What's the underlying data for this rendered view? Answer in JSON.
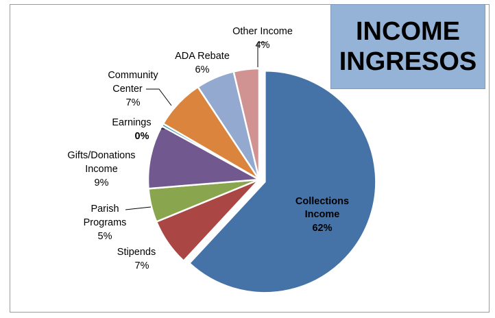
{
  "title": {
    "line1": "INCOME",
    "line2": "INGRESOS"
  },
  "colors": {
    "title_box": "#95b3d7",
    "collections": "#4572a7",
    "stipends": "#aa4643",
    "parish": "#89a54e",
    "gifts": "#71588f",
    "earnings": "#4198af",
    "community": "#db843d",
    "ada": "#93a9cf",
    "other": "#d19392"
  },
  "chart_data": {
    "type": "pie",
    "title": "INCOME INGRESOS",
    "slices": [
      {
        "name": "Collections Income",
        "pct_label": "62%",
        "value": 61.9,
        "color": "#4572a7",
        "exploded": true
      },
      {
        "name": "Stipends",
        "pct_label": "7%",
        "value": 6.9,
        "color": "#aa4643"
      },
      {
        "name": "Parish Programs",
        "pct_label": "5%",
        "value": 4.9,
        "color": "#89a54e"
      },
      {
        "name": "Gifts/Donations Income",
        "pct_label": "9%",
        "value": 9.3,
        "color": "#71588f"
      },
      {
        "name": "Earnings",
        "pct_label": "0%",
        "value": 0.4,
        "color": "#4198af"
      },
      {
        "name": "Community Center",
        "pct_label": "7%",
        "value": 7.3,
        "color": "#db843d"
      },
      {
        "name": "ADA Rebate",
        "pct_label": "6%",
        "value": 5.6,
        "color": "#93a9cf"
      },
      {
        "name": "Other Income",
        "pct_label": "4%",
        "value": 3.7,
        "color": "#d19392"
      }
    ]
  },
  "labels": {
    "collections": {
      "l1": "Collections",
      "l2": "Income",
      "pct": "62%"
    },
    "stipends": {
      "l1": "Stipends",
      "pct": "7%"
    },
    "parish": {
      "l1": "Parish",
      "l2": "Programs",
      "pct": "5%"
    },
    "gifts": {
      "l1": "Gifts/Donations",
      "l2": "Income",
      "pct": "9%"
    },
    "earnings": {
      "l1": "Earnings",
      "pct": "0%"
    },
    "community": {
      "l1": "Community",
      "l2": "Center",
      "pct": "7%"
    },
    "ada": {
      "l1": "ADA Rebate",
      "pct": "6%"
    },
    "other": {
      "l1": "Other Income",
      "pct": "4%"
    }
  }
}
